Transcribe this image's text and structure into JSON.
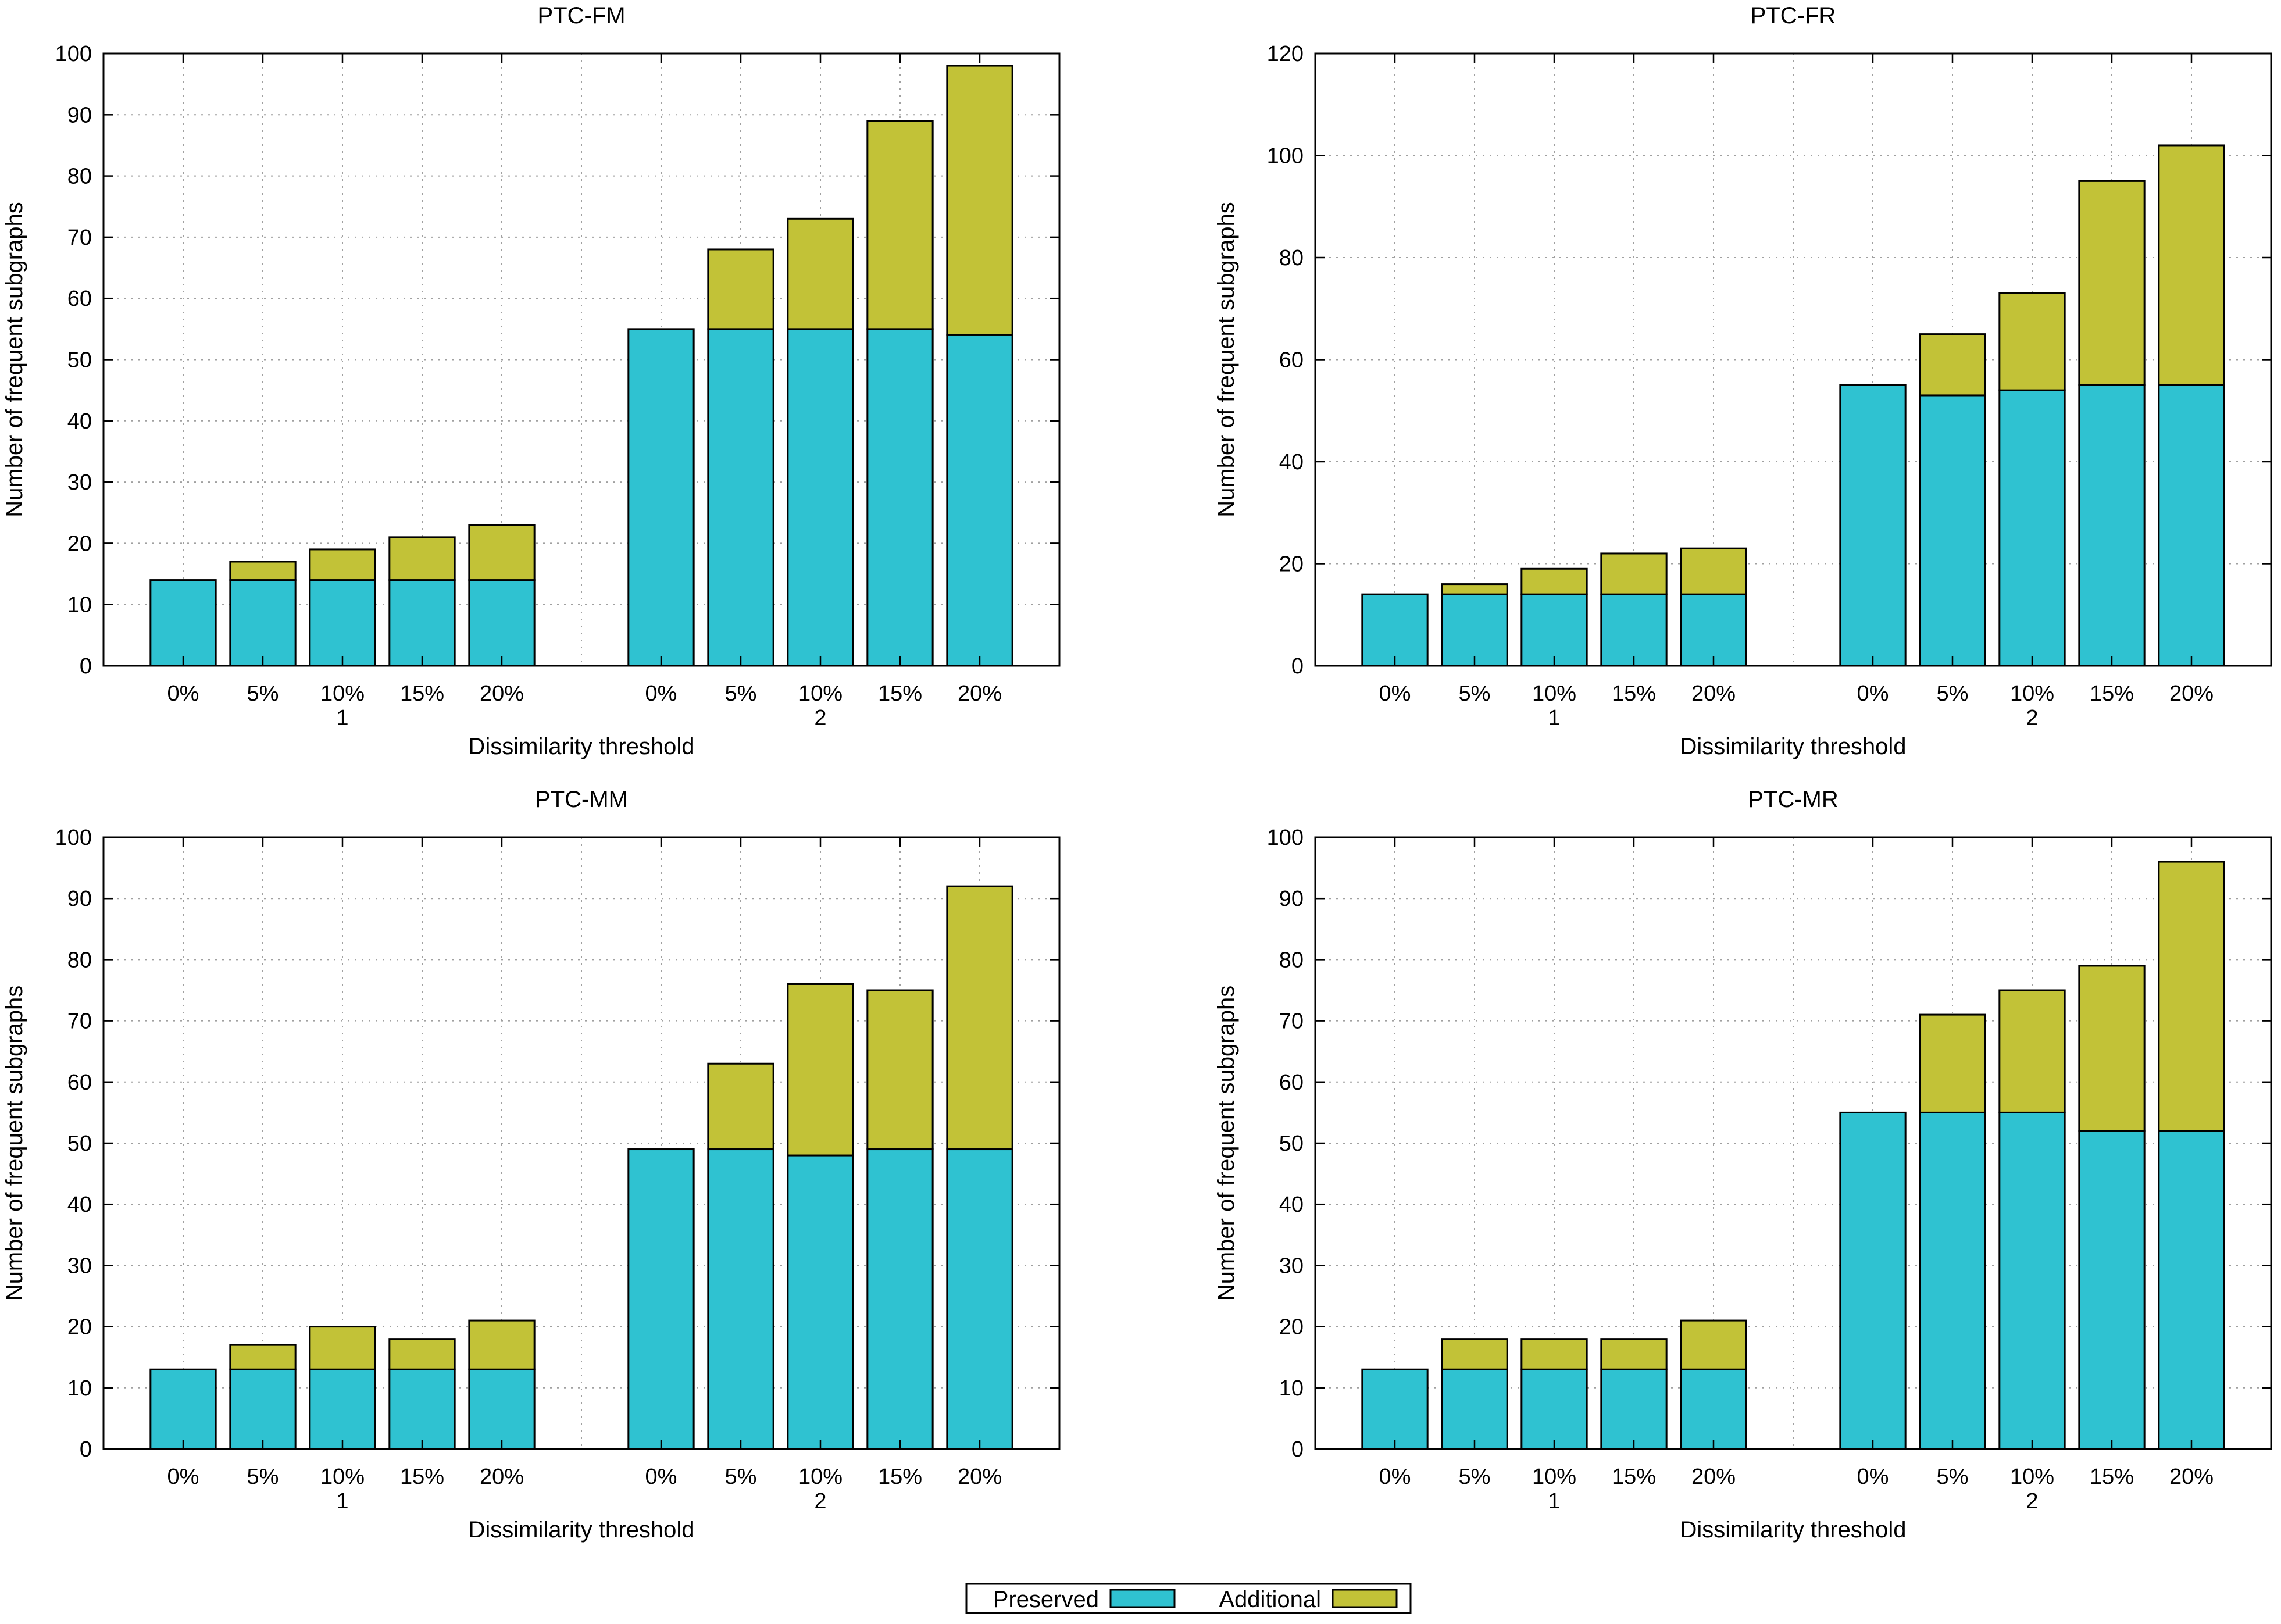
{
  "colors": {
    "preserved": "#2fc2d1",
    "additional": "#c2c237"
  },
  "legend": {
    "preserved_label": "Preserved",
    "additional_label": "Additional"
  },
  "chart_data": [
    {
      "type": "bar",
      "stacked": true,
      "title": "PTC-FM",
      "xlabel": "Dissimilarity threshold",
      "ylabel": "Number of frequent subgraphs",
      "ylim": [
        0,
        100
      ],
      "ystep": 10,
      "groups": [
        "1",
        "2"
      ],
      "categories": [
        "0%",
        "5%",
        "10%",
        "15%",
        "20%"
      ],
      "series": [
        {
          "name": "Preserved",
          "values": [
            [
              14,
              14,
              14,
              14,
              14
            ],
            [
              55,
              55,
              55,
              55,
              54
            ]
          ]
        },
        {
          "name": "Additional",
          "values": [
            [
              0,
              3,
              5,
              7,
              9
            ],
            [
              0,
              13,
              18,
              34,
              44
            ]
          ]
        }
      ]
    },
    {
      "type": "bar",
      "stacked": true,
      "title": "PTC-FR",
      "xlabel": "Dissimilarity threshold",
      "ylabel": "Number of frequent subgraphs",
      "ylim": [
        0,
        120
      ],
      "ystep": 20,
      "groups": [
        "1",
        "2"
      ],
      "categories": [
        "0%",
        "5%",
        "10%",
        "15%",
        "20%"
      ],
      "series": [
        {
          "name": "Preserved",
          "values": [
            [
              14,
              14,
              14,
              14,
              14
            ],
            [
              55,
              53,
              54,
              55,
              55
            ]
          ]
        },
        {
          "name": "Additional",
          "values": [
            [
              0,
              2,
              5,
              8,
              9
            ],
            [
              0,
              12,
              19,
              40,
              47
            ]
          ]
        }
      ]
    },
    {
      "type": "bar",
      "stacked": true,
      "title": "PTC-MM",
      "xlabel": "Dissimilarity threshold",
      "ylabel": "Number of frequent subgraphs",
      "ylim": [
        0,
        100
      ],
      "ystep": 10,
      "groups": [
        "1",
        "2"
      ],
      "categories": [
        "0%",
        "5%",
        "10%",
        "15%",
        "20%"
      ],
      "series": [
        {
          "name": "Preserved",
          "values": [
            [
              13,
              13,
              13,
              13,
              13
            ],
            [
              49,
              49,
              48,
              49,
              49
            ]
          ]
        },
        {
          "name": "Additional",
          "values": [
            [
              0,
              4,
              7,
              5,
              8
            ],
            [
              0,
              14,
              28,
              26,
              43
            ]
          ]
        }
      ]
    },
    {
      "type": "bar",
      "stacked": true,
      "title": "PTC-MR",
      "xlabel": "Dissimilarity threshold",
      "ylabel": "Number of frequent subgraphs",
      "ylim": [
        0,
        100
      ],
      "ystep": 10,
      "groups": [
        "1",
        "2"
      ],
      "categories": [
        "0%",
        "5%",
        "10%",
        "15%",
        "20%"
      ],
      "series": [
        {
          "name": "Preserved",
          "values": [
            [
              13,
              13,
              13,
              13,
              13
            ],
            [
              55,
              55,
              55,
              52,
              52
            ]
          ]
        },
        {
          "name": "Additional",
          "values": [
            [
              0,
              5,
              5,
              5,
              8
            ],
            [
              0,
              16,
              20,
              27,
              44
            ]
          ]
        }
      ]
    }
  ]
}
